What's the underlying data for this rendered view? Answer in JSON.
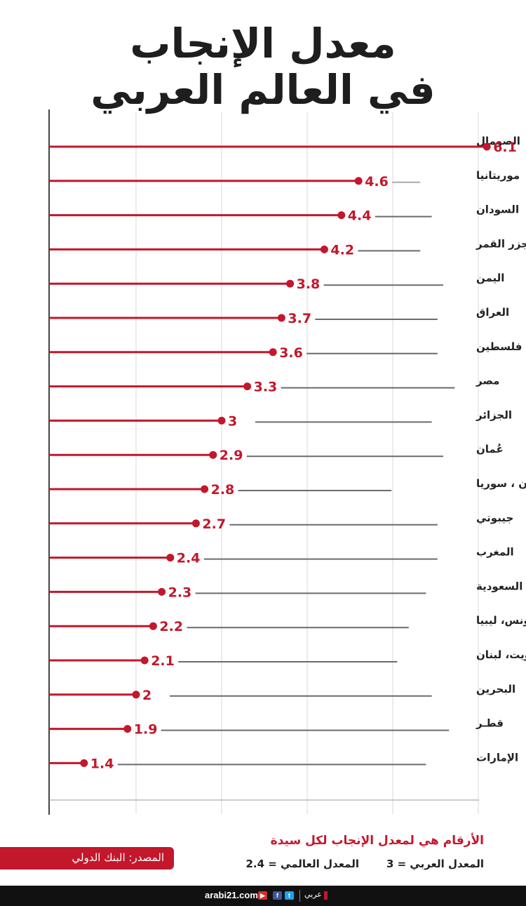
{
  "title_line1": "معدل الإنجاب",
  "title_line2": "في العالم العربي",
  "colors": {
    "accent": "#c3172b",
    "grey_line": "#6b6b6b",
    "light_line": "#aaaaaa",
    "grid": "#d9d9d9",
    "axis": "#444444"
  },
  "chart_data": {
    "type": "bar",
    "style": "lollipop",
    "orientation": "horizontal",
    "categories": [
      "الصومال",
      "موريتانيا",
      "السودان",
      "جزر القمر",
      "اليمن",
      "العراق",
      "فلسطين",
      "مصر",
      "الجزائر",
      "عُمان",
      "الأردن ، سوريا",
      "جيبوتي",
      "المغرب",
      "السعودية",
      "تونس، ليبيا",
      "الكويت، لبنان",
      "البحرين",
      "قطـر",
      "الإمارات"
    ],
    "value_labels": [
      "6.1",
      "4.6",
      "4.4",
      "4.2",
      "3.8",
      "3.7",
      "3.6",
      "3.3",
      "3",
      "2.9",
      "2.8",
      "2.7",
      "2.4",
      "2.3",
      "2.2",
      "2.1",
      "2",
      "1.9",
      "1.4"
    ],
    "values": [
      6.1,
      4.6,
      4.4,
      4.2,
      3.8,
      3.7,
      3.6,
      3.3,
      3,
      2.9,
      2.8,
      2.7,
      2.4,
      2.3,
      2.2,
      2.1,
      2,
      1.9,
      1.4
    ],
    "xlim": [
      0.6,
      6.6
    ],
    "grid": true,
    "xlabel": "",
    "ylabel": ""
  },
  "note": {
    "title": "الأرقام هي لمعدل الإنجاب لكل سيدة",
    "arab_average": "المعدل العربي = 3",
    "world_average": "المعدل العالمي = 2.4"
  },
  "source": "المصدر: البنك الدولي",
  "footer": {
    "site": "arabi21.com",
    "brand": "عربي",
    "icons": [
      "youtube-icon",
      "facebook-icon",
      "twitter-icon"
    ],
    "youtube_glyph": "▶",
    "facebook_glyph": "f",
    "twitter_glyph": "t"
  }
}
